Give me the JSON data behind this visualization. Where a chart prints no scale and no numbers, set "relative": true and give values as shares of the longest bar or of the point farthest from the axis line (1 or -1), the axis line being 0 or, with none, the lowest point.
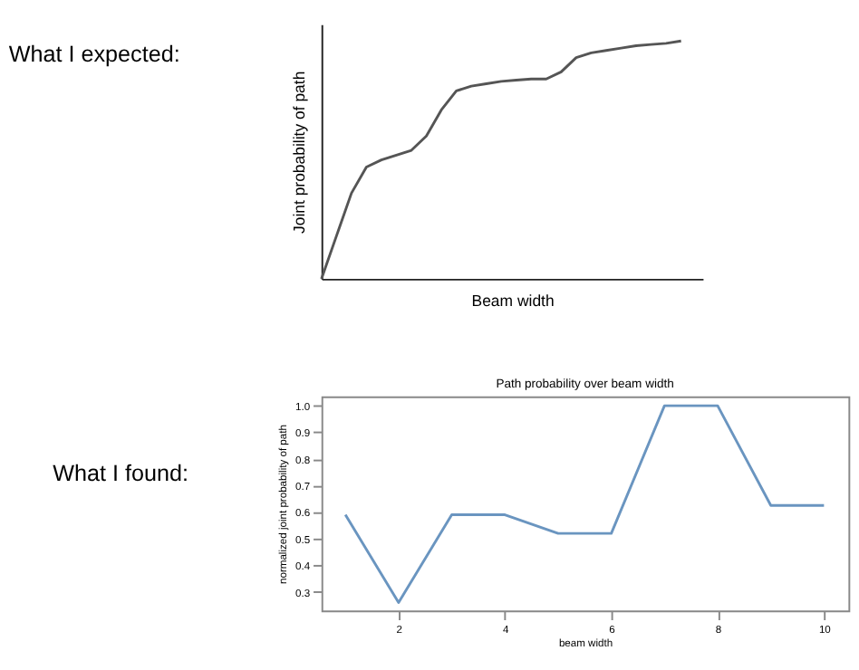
{
  "chart_data": [
    {
      "type": "line",
      "relative": true,
      "xlabel": "Beam width",
      "ylabel": "Joint probability of path",
      "annotations": [
        "What I expected:"
      ],
      "color": "#555555",
      "categories": [
        null,
        null,
        null,
        null,
        null,
        null,
        null,
        null,
        null,
        null,
        null,
        null,
        null,
        null,
        null,
        null,
        null,
        null,
        null,
        null,
        null,
        null,
        null,
        null,
        null
      ],
      "values": [
        0,
        0.18,
        0.36,
        0.47,
        0.5,
        0.52,
        0.54,
        0.6,
        0.71,
        0.79,
        0.81,
        0.82,
        0.83,
        0.835,
        0.84,
        0.84,
        0.87,
        0.93,
        0.95,
        0.96,
        0.97,
        0.98,
        0.985,
        0.99,
        1
      ]
    },
    {
      "type": "line",
      "title": "Path probability over beam width",
      "xlabel": "beam width",
      "ylabel": "normalized joint probability of path",
      "annotations": [
        "What I found:"
      ],
      "color": "#6a95c0",
      "x": [
        1,
        2,
        3,
        4,
        5,
        6,
        7,
        8,
        9,
        10
      ],
      "values": [
        0.59,
        0.26,
        0.59,
        0.59,
        0.52,
        0.52,
        1.0,
        1.0,
        0.625,
        0.625
      ],
      "xlim": [
        0.55,
        10.46
      ],
      "ylim": [
        0.23,
        1.035
      ],
      "xticks": [
        2,
        4,
        6,
        8,
        10
      ],
      "yticks": [
        0.3,
        0.4,
        0.5,
        0.6,
        0.7,
        0.8,
        0.9,
        {
          "value": 1,
          "label": "1.0"
        }
      ],
      "grid": false,
      "legend": false
    }
  ]
}
